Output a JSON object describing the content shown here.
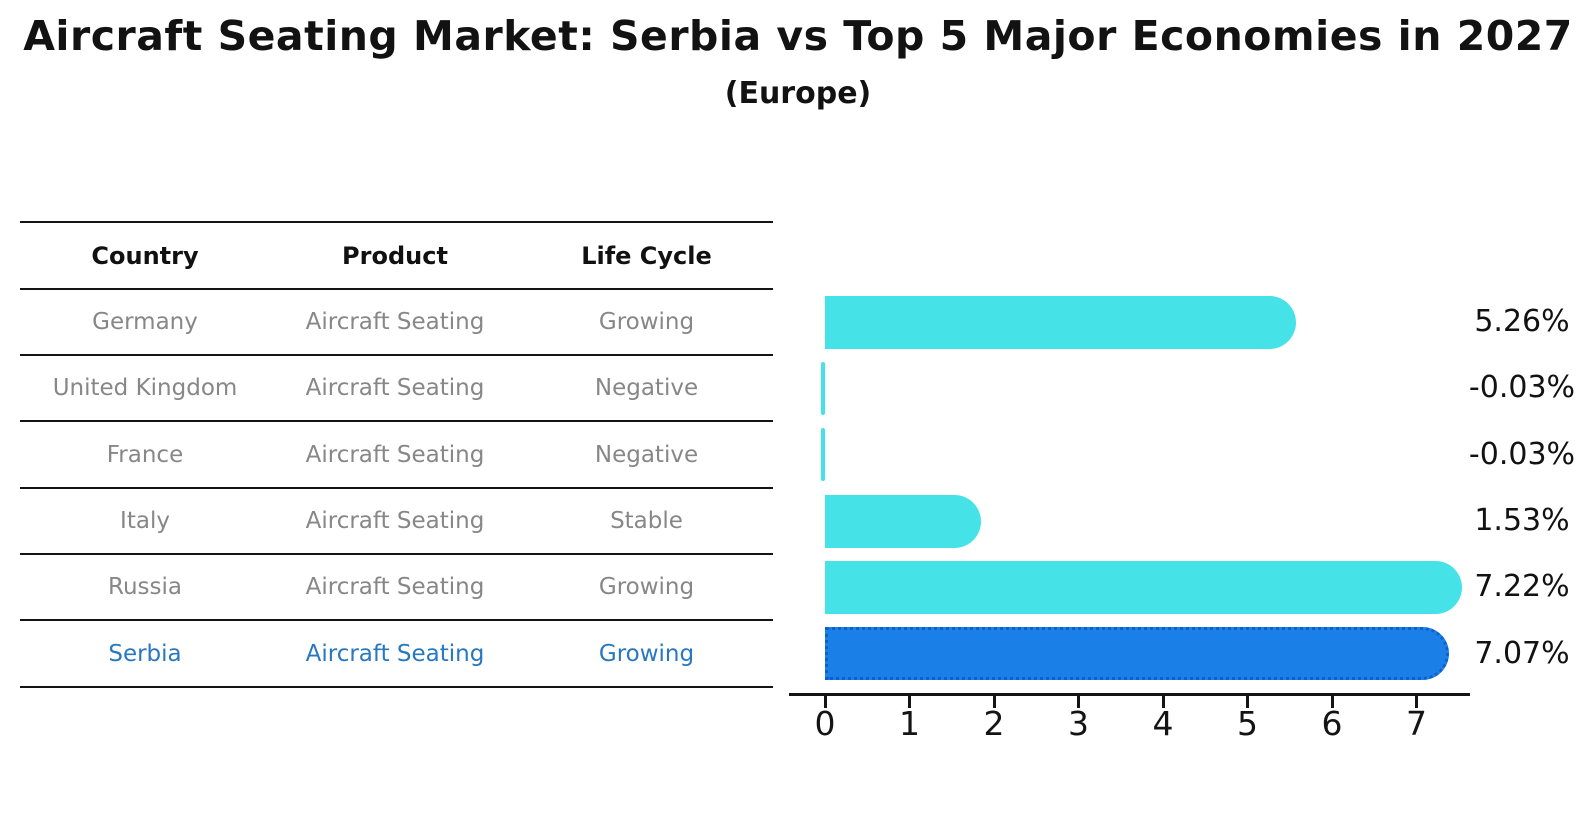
{
  "title": "Aircraft Seating Market: Serbia vs Top 5 Major Economies in 2027",
  "subtitle": "(Europe)",
  "table": {
    "headers": [
      "Country",
      "Product",
      "Life Cycle"
    ],
    "rows": [
      {
        "country": "Germany",
        "product": "Aircraft Seating",
        "life_cycle": "Growing",
        "highlight": false
      },
      {
        "country": "United Kingdom",
        "product": "Aircraft Seating",
        "life_cycle": "Negative",
        "highlight": false
      },
      {
        "country": "France",
        "product": "Aircraft Seating",
        "life_cycle": "Negative",
        "highlight": false
      },
      {
        "country": "Italy",
        "product": "Aircraft Seating",
        "life_cycle": "Stable",
        "highlight": false
      },
      {
        "country": "Russia",
        "product": "Aircraft Seating",
        "life_cycle": "Growing",
        "highlight": false
      },
      {
        "country": "Serbia",
        "product": "Aircraft Seating",
        "life_cycle": "Growing",
        "highlight": true
      }
    ]
  },
  "chart_data": {
    "type": "bar",
    "orientation": "horizontal",
    "title": "Aircraft Seating Market: Serbia vs Top 5 Major Economies in 2027",
    "subtitle": "(Europe)",
    "categories": [
      "Germany",
      "United Kingdom",
      "France",
      "Italy",
      "Russia",
      "Serbia"
    ],
    "values": [
      5.26,
      -0.03,
      -0.03,
      1.53,
      7.22,
      7.07
    ],
    "value_labels": [
      "5.26%",
      "-0.03%",
      "-0.03%",
      "1.53%",
      "7.22%",
      "7.07%"
    ],
    "x_ticks": [
      "0",
      "1",
      "2",
      "3",
      "4",
      "5",
      "6",
      "7"
    ],
    "xlim": [
      -0.45,
      7.65
    ],
    "grid": false,
    "legend": "none",
    "bar_color": "#45E3E8",
    "highlight_bar_color": "#1B7FE8",
    "highlight_bar_edge_color": "#0E5FD0",
    "highlight_category": "Serbia",
    "highlight_index": 5
  },
  "colors": {
    "background": "#FFFFFF",
    "table_line": "#141414",
    "header_text": "#111111",
    "row_text": "#878787",
    "highlight_text": "#2878C0",
    "axis": "#141414",
    "value_label_text": "#121212"
  }
}
